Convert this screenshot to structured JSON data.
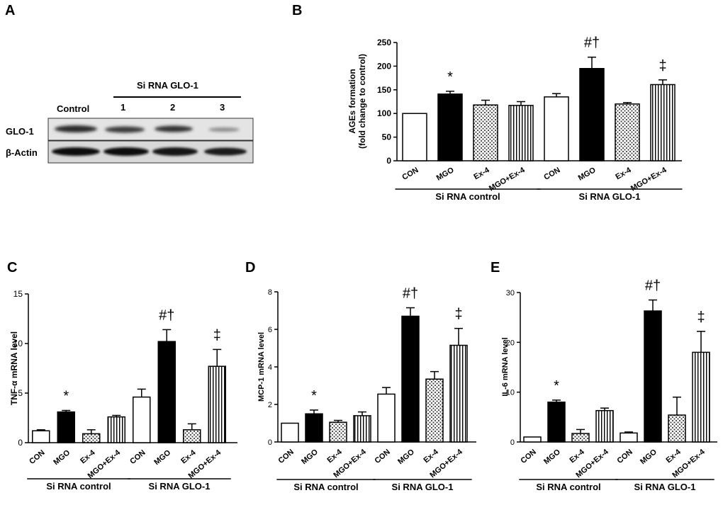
{
  "panels": {
    "a": {
      "letter": "A",
      "group_label": "Si RNA GLO-1",
      "lanes": [
        "Control",
        "1",
        "2",
        "3"
      ],
      "rows": [
        "GLO-1",
        "β-Actin"
      ]
    },
    "b": {
      "letter": "B"
    },
    "c": {
      "letter": "C"
    },
    "d": {
      "letter": "D"
    },
    "e": {
      "letter": "E"
    }
  },
  "chart_data": [
    {
      "id": "b",
      "type": "bar",
      "title": "",
      "ylabel_lines": [
        "AGEs formation",
        "(fold change to control)"
      ],
      "ylim": [
        0,
        250
      ],
      "yticks": [
        0,
        50,
        100,
        150,
        200,
        250
      ],
      "categories": [
        "CON",
        "MGO",
        "Ex-4",
        "MGO+Ex-4",
        "CON",
        "MGO",
        "Ex-4",
        "MGO+Ex-4"
      ],
      "values": [
        100,
        141,
        118,
        117,
        135,
        195,
        120,
        161
      ],
      "errors": [
        0,
        6,
        10,
        8,
        7,
        24,
        3,
        10
      ],
      "annotations": [
        "",
        "*",
        "",
        "",
        "",
        "#†",
        "",
        "‡"
      ],
      "groups": [
        {
          "label": "Si RNA control",
          "start": 0,
          "end": 3
        },
        {
          "label": "Si RNA GLO-1",
          "start": 4,
          "end": 7
        }
      ]
    },
    {
      "id": "c",
      "type": "bar",
      "ylabel_lines": [
        "TNF-α mRNA level"
      ],
      "ylim": [
        0,
        15
      ],
      "yticks": [
        0,
        5,
        10,
        15
      ],
      "categories": [
        "CON",
        "MGO",
        "Ex-4",
        "MGO+Ex-4",
        "CON",
        "MGO",
        "Ex-4",
        "MGO+Ex-4"
      ],
      "values": [
        1.2,
        3.1,
        0.9,
        2.6,
        4.6,
        10.2,
        1.3,
        7.7
      ],
      "errors": [
        0.1,
        0.15,
        0.4,
        0.15,
        0.8,
        1.2,
        0.6,
        1.7
      ],
      "annotations": [
        "",
        "*",
        "",
        "",
        "",
        "#†",
        "",
        "‡"
      ],
      "groups": [
        {
          "label": "Si RNA control",
          "start": 0,
          "end": 3
        },
        {
          "label": "Si RNA GLO-1",
          "start": 4,
          "end": 7
        }
      ]
    },
    {
      "id": "d",
      "type": "bar",
      "ylabel_lines": [
        "MCP-1 mRNA level"
      ],
      "ylim": [
        0,
        8
      ],
      "yticks": [
        0,
        2,
        4,
        6,
        8
      ],
      "categories": [
        "CON",
        "MGO",
        "Ex-4",
        "MGO+Ex-4",
        "CON",
        "MGO",
        "Ex-4",
        "MGO+Ex-4"
      ],
      "values": [
        1.0,
        1.5,
        1.05,
        1.4,
        2.55,
        6.7,
        3.35,
        5.15
      ],
      "errors": [
        0.0,
        0.2,
        0.1,
        0.2,
        0.35,
        0.45,
        0.4,
        0.9
      ],
      "annotations": [
        "",
        "*",
        "",
        "",
        "",
        "#†",
        "",
        "‡"
      ],
      "groups": [
        {
          "label": "Si RNA control",
          "start": 0,
          "end": 3
        },
        {
          "label": "Si RNA GLO-1",
          "start": 4,
          "end": 7
        }
      ]
    },
    {
      "id": "e",
      "type": "bar",
      "ylabel_lines": [
        "IL-6 mRNA level"
      ],
      "ylim": [
        0,
        30
      ],
      "yticks": [
        0,
        10,
        20,
        30
      ],
      "categories": [
        "CON",
        "MGO",
        "Ex-4",
        "MGO+Ex-4",
        "CON",
        "MGO",
        "Ex-4",
        "MGO+Ex-4"
      ],
      "values": [
        1.0,
        8.0,
        1.7,
        6.3,
        1.8,
        26.3,
        5.4,
        18.0
      ],
      "errors": [
        0.0,
        0.4,
        0.8,
        0.5,
        0.2,
        2.2,
        3.6,
        4.2
      ],
      "annotations": [
        "",
        "*",
        "",
        "",
        "",
        "#†",
        "",
        "‡"
      ],
      "groups": [
        {
          "label": "Si RNA control",
          "start": 0,
          "end": 3
        },
        {
          "label": "Si RNA GLO-1",
          "start": 4,
          "end": 7
        }
      ]
    }
  ]
}
